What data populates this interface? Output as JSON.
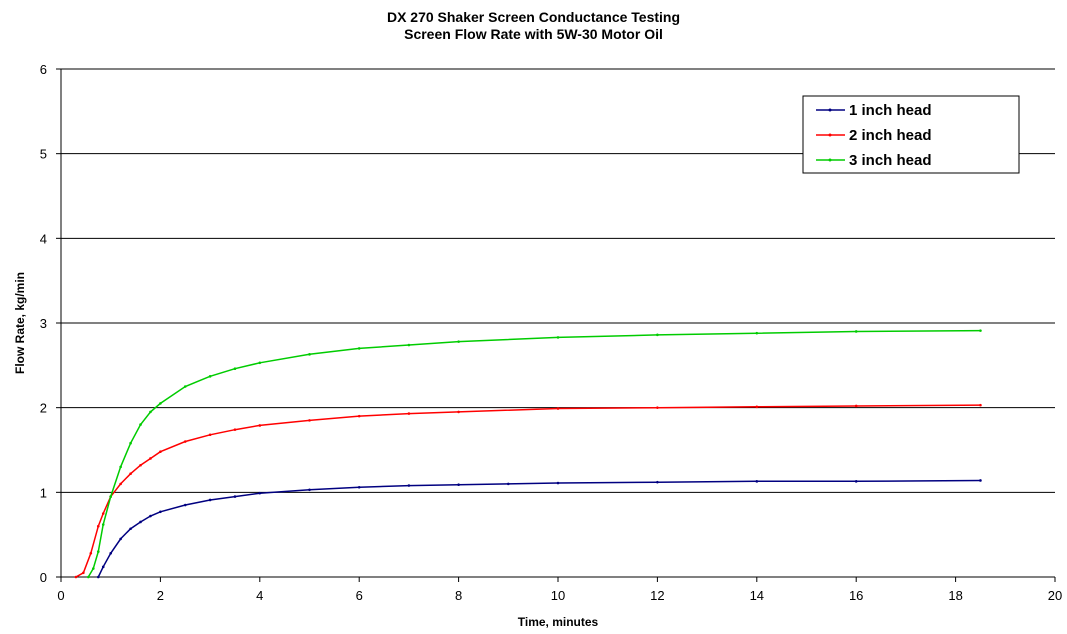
{
  "chart_data": {
    "type": "line",
    "title": "DX 270 Shaker Screen Conductance Testing",
    "subtitle": "Screen Flow Rate with 5W-30 Motor Oil",
    "xlabel": "Time, minutes",
    "ylabel": "Flow Rate, kg/min",
    "xlim": [
      0,
      20
    ],
    "ylim": [
      0,
      6
    ],
    "xticks": [
      0,
      2,
      4,
      6,
      8,
      10,
      12,
      14,
      16,
      18,
      20
    ],
    "yticks": [
      0,
      1,
      2,
      3,
      4,
      5,
      6
    ],
    "grid": "horizontal",
    "legend_position": "top-right",
    "series": [
      {
        "name": "1 inch head",
        "color": "#000080",
        "x": [
          0.75,
          0.85,
          1.0,
          1.2,
          1.4,
          1.6,
          1.8,
          2.0,
          2.5,
          3.0,
          3.5,
          4.0,
          5.0,
          6.0,
          7.0,
          8.0,
          9.0,
          10.0,
          12.0,
          14.0,
          16.0,
          18.5
        ],
        "y": [
          0.0,
          0.12,
          0.28,
          0.45,
          0.57,
          0.65,
          0.72,
          0.77,
          0.85,
          0.91,
          0.95,
          0.99,
          1.03,
          1.06,
          1.08,
          1.09,
          1.1,
          1.11,
          1.12,
          1.13,
          1.13,
          1.14
        ]
      },
      {
        "name": "2 inch head",
        "color": "#ff0000",
        "x": [
          0.3,
          0.45,
          0.6,
          0.75,
          0.85,
          1.0,
          1.2,
          1.4,
          1.6,
          1.8,
          2.0,
          2.5,
          3.0,
          3.5,
          4.0,
          5.0,
          6.0,
          7.0,
          8.0,
          10.0,
          12.0,
          14.0,
          16.0,
          18.5
        ],
        "y": [
          0.0,
          0.05,
          0.28,
          0.6,
          0.75,
          0.95,
          1.1,
          1.22,
          1.32,
          1.4,
          1.48,
          1.6,
          1.68,
          1.74,
          1.79,
          1.85,
          1.9,
          1.93,
          1.95,
          1.99,
          2.0,
          2.01,
          2.02,
          2.03
        ]
      },
      {
        "name": "3 inch head",
        "color": "#00cc00",
        "x": [
          0.55,
          0.65,
          0.75,
          0.85,
          1.0,
          1.2,
          1.4,
          1.6,
          1.8,
          2.0,
          2.5,
          3.0,
          3.5,
          4.0,
          5.0,
          6.0,
          7.0,
          8.0,
          10.0,
          12.0,
          14.0,
          16.0,
          18.5
        ],
        "y": [
          0.0,
          0.1,
          0.3,
          0.62,
          0.95,
          1.3,
          1.58,
          1.8,
          1.95,
          2.05,
          2.25,
          2.37,
          2.46,
          2.53,
          2.63,
          2.7,
          2.74,
          2.78,
          2.83,
          2.86,
          2.88,
          2.9,
          2.91
        ]
      }
    ]
  }
}
